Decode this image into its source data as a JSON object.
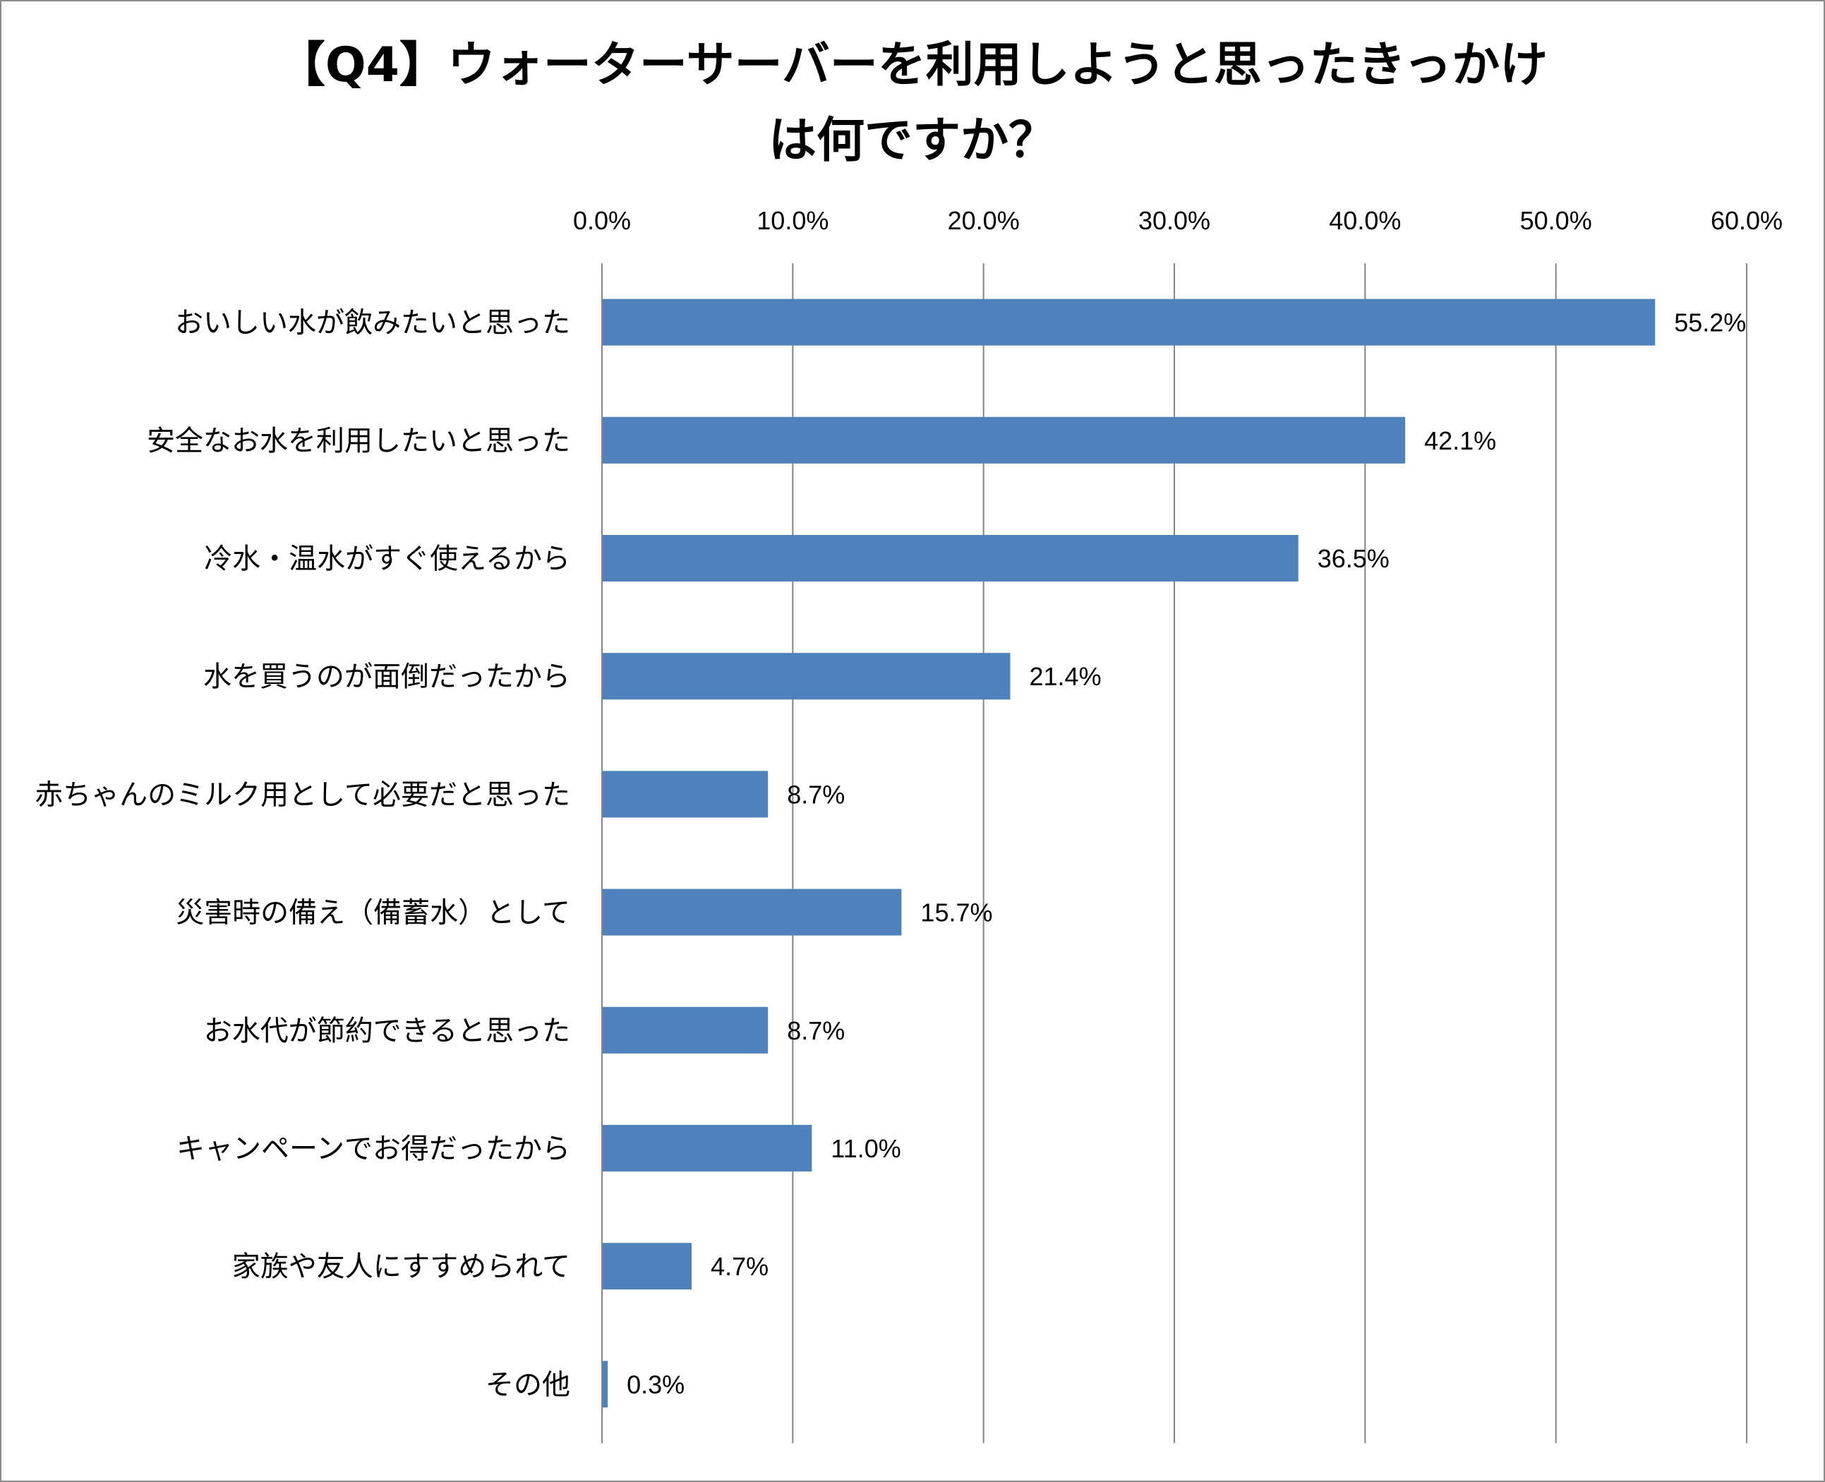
{
  "chart_data": {
    "type": "bar",
    "orientation": "horizontal",
    "title": "【Q4】ウォーターサーバーを利用しようと思ったきっかけは何ですか？",
    "title_lines": [
      "【Q4】ウォーターサーバーを利用しようと思ったきっかけ",
      "は何ですか？"
    ],
    "categories": [
      "おいしい水が飲みたいと思った",
      "安全なお水を利用したいと思った",
      "冷水・温水がすぐ使えるから",
      "水を買うのが面倒だったから",
      "赤ちゃんのミルク用として必要だと思った",
      "災害時の備え（備蓄水）として",
      "お水代が節約できると思った",
      "キャンペーンでお得だったから",
      "家族や友人にすすめられて",
      "その他"
    ],
    "values": [
      55.2,
      42.1,
      36.5,
      21.4,
      8.7,
      15.7,
      8.7,
      11.0,
      4.7,
      0.3
    ],
    "data_labels": [
      "55.2%",
      "42.1%",
      "36.5%",
      "21.4%",
      "8.7%",
      "15.7%",
      "8.7%",
      "11.0%",
      "4.7%",
      "0.3%"
    ],
    "xlim": [
      0,
      60
    ],
    "x_ticks": [
      "0.0%",
      "10.0%",
      "20.0%",
      "30.0%",
      "40.0%",
      "50.0%",
      "60.0%"
    ],
    "x_axis_position": "top",
    "grid": true,
    "legend": "none",
    "bar_color": "#4f81bd",
    "grid_color": "#868686"
  }
}
